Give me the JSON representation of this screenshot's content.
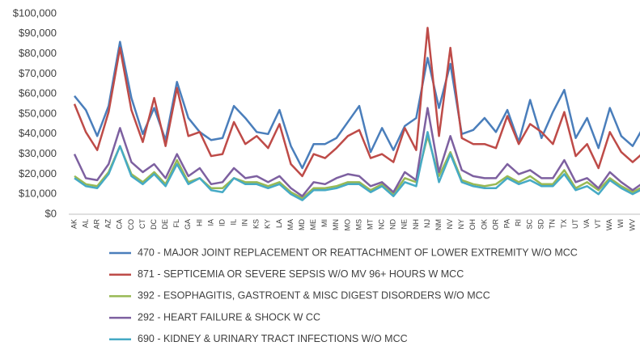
{
  "chart_data": {
    "type": "line",
    "categories": [
      "AK",
      "AL",
      "AR",
      "AZ",
      "CA",
      "CO",
      "CT",
      "DC",
      "DE",
      "FL",
      "GA",
      "HI",
      "IA",
      "ID",
      "IL",
      "IN",
      "KS",
      "KY",
      "LA",
      "MA",
      "MD",
      "ME",
      "MI",
      "MN",
      "MO",
      "MS",
      "MT",
      "NC",
      "ND",
      "NE",
      "NH",
      "NJ",
      "NM",
      "NV",
      "NY",
      "OH",
      "OK",
      "OR",
      "PA",
      "RI",
      "SC",
      "SD",
      "TN",
      "TX",
      "UT",
      "VA",
      "VT",
      "WA",
      "WI",
      "WV",
      null
    ],
    "series": [
      {
        "name": "470 - MAJOR JOINT REPLACEMENT OR REATTACHMENT OF LOWER EXTREMITY W/O MCC",
        "color": "#4a7ebb",
        "values": [
          59000,
          52000,
          39000,
          54000,
          86000,
          58000,
          40000,
          53000,
          37000,
          66000,
          48000,
          41000,
          37000,
          38000,
          54000,
          48000,
          41000,
          40000,
          52000,
          34000,
          23000,
          35000,
          35000,
          38000,
          46000,
          54000,
          31000,
          43000,
          32000,
          44000,
          48000,
          78000,
          53000,
          75000,
          40000,
          42000,
          48000,
          41000,
          52000,
          36000,
          57000,
          38000,
          51000,
          62000,
          38000,
          48000,
          33000,
          53000,
          39000,
          34000,
          44000
        ]
      },
      {
        "name": "871 - SEPTICEMIA OR SEVERE SEPSIS W/O MV 96+ HOURS W MCC",
        "color": "#be4b48",
        "values": [
          55000,
          41000,
          32000,
          51000,
          83000,
          52000,
          36000,
          58000,
          34000,
          63000,
          39000,
          41000,
          29000,
          30000,
          46000,
          35000,
          39000,
          33000,
          45000,
          25000,
          19000,
          30000,
          28000,
          33000,
          39000,
          42000,
          28000,
          30000,
          26000,
          43000,
          32000,
          93000,
          39000,
          83000,
          38000,
          35000,
          35000,
          33000,
          49000,
          35000,
          45000,
          41000,
          35000,
          51000,
          29000,
          35000,
          23000,
          41000,
          31000,
          26000,
          31000
        ]
      },
      {
        "name": "392 - ESOPHAGITIS, GASTROENT & MISC DIGEST DISORDERS W/O MCC",
        "color": "#98b954",
        "values": [
          19000,
          15000,
          14000,
          21000,
          34000,
          20000,
          16000,
          21000,
          15000,
          27000,
          16000,
          18000,
          13000,
          13000,
          18000,
          16000,
          16000,
          14000,
          16000,
          11000,
          8000,
          13000,
          13000,
          14000,
          16000,
          16000,
          12000,
          15000,
          10000,
          18000,
          16000,
          39000,
          19000,
          31000,
          17000,
          15000,
          14000,
          15000,
          19000,
          16000,
          19000,
          15000,
          15000,
          22000,
          13000,
          16000,
          12000,
          18000,
          14000,
          11000,
          14000
        ]
      },
      {
        "name": "292 - HEART FAILURE & SHOCK W CC",
        "color": "#7d60a0",
        "values": [
          30000,
          18000,
          17000,
          25000,
          43000,
          26000,
          21000,
          25000,
          18000,
          30000,
          19000,
          23000,
          15000,
          16000,
          23000,
          18000,
          19000,
          16000,
          19000,
          13000,
          9000,
          16000,
          15000,
          18000,
          20000,
          19000,
          14000,
          16000,
          11000,
          21000,
          17000,
          53000,
          21000,
          39000,
          22000,
          19000,
          18000,
          18000,
          25000,
          20000,
          22000,
          18000,
          18000,
          27000,
          16000,
          18000,
          13000,
          21000,
          16000,
          12000,
          16000
        ]
      },
      {
        "name": "690 - KIDNEY & URINARY TRACT INFECTIONS W/O MCC",
        "color": "#46aac5",
        "values": [
          18000,
          14000,
          13000,
          20000,
          34000,
          19000,
          15000,
          20000,
          14000,
          25000,
          15000,
          18000,
          12000,
          11000,
          18000,
          15000,
          15000,
          13000,
          15000,
          10000,
          7000,
          12000,
          12000,
          13000,
          15000,
          15000,
          11000,
          14000,
          9000,
          16000,
          14000,
          41000,
          16000,
          30000,
          16000,
          14000,
          13000,
          13000,
          18000,
          15000,
          17000,
          14000,
          14000,
          20000,
          12000,
          14000,
          10000,
          17000,
          13000,
          10000,
          13000
        ]
      }
    ],
    "ylim": [
      0,
      100000
    ],
    "yticks": [
      {
        "value": 0,
        "label": "$0"
      },
      {
        "value": 10000,
        "label": "$10,000"
      },
      {
        "value": 20000,
        "label": "$20,000"
      },
      {
        "value": 30000,
        "label": "$30,000"
      },
      {
        "value": 40000,
        "label": "$40,000"
      },
      {
        "value": 50000,
        "label": "$50,000"
      },
      {
        "value": 60000,
        "label": "$60,000"
      },
      {
        "value": 70000,
        "label": "$70,000"
      },
      {
        "value": 80000,
        "label": "$80,000"
      },
      {
        "value": 90000,
        "label": "$90,000"
      },
      {
        "value": 100000,
        "label": "$100,000"
      }
    ],
    "grid": false,
    "legend": "bottom"
  }
}
